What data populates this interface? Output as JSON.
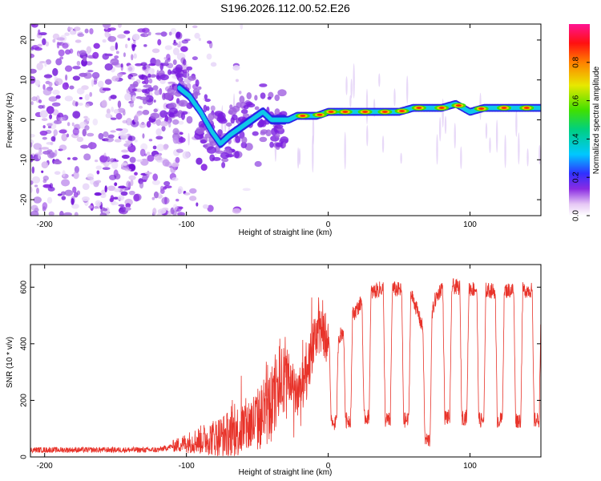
{
  "title": "S196.2026.112.00.52.E26",
  "chart_data": [
    {
      "type": "heatmap",
      "name": "spectrogram",
      "xlabel": "Height of straight line (km)",
      "ylabel": "Frequency (Hz)",
      "xlim": [
        -210,
        150
      ],
      "ylim": [
        -24,
        24
      ],
      "xticks": [
        "-200",
        "-100",
        "0",
        "100"
      ],
      "yticks": [
        "20",
        "10",
        "0",
        "-10",
        "-20"
      ],
      "colorbar": {
        "label": "Normalized spectral amplitude",
        "range": [
          0,
          1
        ],
        "ticks": [
          "0.0",
          "0.2",
          "0.4",
          "0.6",
          "0.8"
        ]
      },
      "ridge": {
        "x": [
          -105,
          -98,
          -90,
          -82,
          -76,
          -70,
          -62,
          -54,
          -46,
          -40,
          -33,
          -28,
          -22,
          -15,
          -8,
          0,
          10,
          20,
          30,
          40,
          50,
          60,
          70,
          80,
          90,
          100,
          110,
          120,
          130,
          140,
          150
        ],
        "y": [
          8,
          6,
          2,
          -3,
          -6,
          -4,
          -2,
          0,
          2,
          0,
          0,
          0,
          1,
          1,
          1,
          2,
          2,
          2,
          2,
          2,
          2,
          3,
          3,
          3,
          4,
          2,
          3,
          3,
          3,
          3,
          3
        ]
      }
    },
    {
      "type": "line",
      "name": "snr",
      "xlabel": "Height of straight line (km)",
      "ylabel": "SNR (10 * v/v)",
      "xlim": [
        -210,
        150
      ],
      "ylim": [
        0,
        680
      ],
      "xticks": [
        "-200",
        "-100",
        "0",
        "100"
      ],
      "yticks": [
        "0",
        "200",
        "400",
        "600"
      ],
      "color": "#e8332a",
      "profile": {
        "x": [
          -210,
          -120,
          -100,
          -90,
          -80,
          -70,
          -60,
          -50,
          -40,
          -35,
          -30,
          -25,
          -20,
          -15,
          -10,
          -5,
          0,
          5,
          10,
          15,
          20,
          25,
          30,
          35,
          40,
          45,
          50,
          55,
          60,
          65,
          70,
          75,
          80,
          85,
          90,
          100,
          110,
          120,
          130,
          140,
          150
        ],
        "y": [
          25,
          25,
          50,
          60,
          70,
          80,
          100,
          130,
          180,
          280,
          300,
          250,
          230,
          280,
          400,
          460,
          400,
          410,
          440,
          490,
          520,
          560,
          580,
          590,
          600,
          595,
          590,
          585,
          560,
          480,
          410,
          550,
          600,
          610,
          600,
          595,
          590,
          585,
          590,
          590,
          590
        ]
      },
      "dips": [
        {
          "x": 4,
          "y": 120
        },
        {
          "x": 14,
          "y": 130
        },
        {
          "x": 27,
          "y": 140
        },
        {
          "x": 42,
          "y": 130
        },
        {
          "x": 55,
          "y": 130
        },
        {
          "x": 70,
          "y": 60
        },
        {
          "x": 84,
          "y": 140
        },
        {
          "x": 96,
          "y": 140
        },
        {
          "x": 108,
          "y": 130
        },
        {
          "x": 121,
          "y": 130
        },
        {
          "x": 134,
          "y": 130
        },
        {
          "x": 147,
          "y": 130
        }
      ]
    }
  ]
}
